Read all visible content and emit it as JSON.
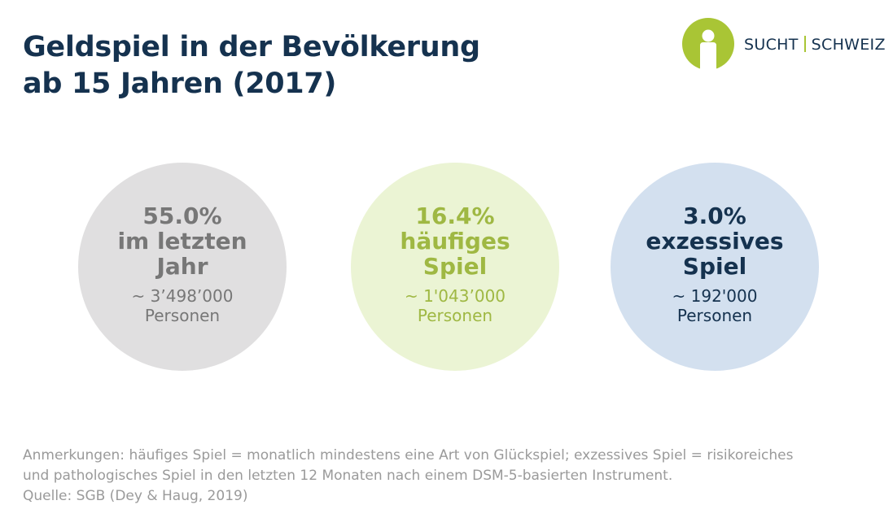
{
  "header": {
    "title_line1": "Geldspiel in der Bevölkerung",
    "title_line2": "ab 15 Jahren (2017)"
  },
  "logo": {
    "left_text": "SUCHT",
    "right_text": "SCHWEIZ",
    "colors": {
      "green": "#a9c535",
      "navy": "#15324f"
    }
  },
  "chart_data": {
    "type": "bubble-stat",
    "items": [
      {
        "percent_label": "55.0%",
        "label_lines": [
          "im letzten",
          "Jahr"
        ],
        "value": 55.0,
        "count_label": "~ 3’498’000",
        "unit": "Personen",
        "color": "#777777",
        "fill": "#e0dfe0"
      },
      {
        "percent_label": "16.4%",
        "label_lines": [
          "häufiges",
          "Spiel"
        ],
        "value": 16.4,
        "count_label": "~ 1'043’000",
        "unit": "Personen",
        "color": "#9fb843",
        "fill": "#ebf4d4"
      },
      {
        "percent_label": "3.0%",
        "label_lines": [
          "exzessives",
          "Spiel"
        ],
        "value": 3.0,
        "count_label": "~ 192'000",
        "unit": "Personen",
        "color": "#15324f",
        "fill": "#d3e0ef"
      }
    ]
  },
  "footer": {
    "notes_line1": "Anmerkungen: häufiges Spiel = monatlich mindestens eine Art von Glückspiel; exzessives Spiel = risikoreiches",
    "notes_line2": "und pathologisches Spiel in den letzten 12 Monaten nach einem DSM-5-basierten Instrument.",
    "source": "Quelle: SGB (Dey & Haug, 2019)"
  }
}
